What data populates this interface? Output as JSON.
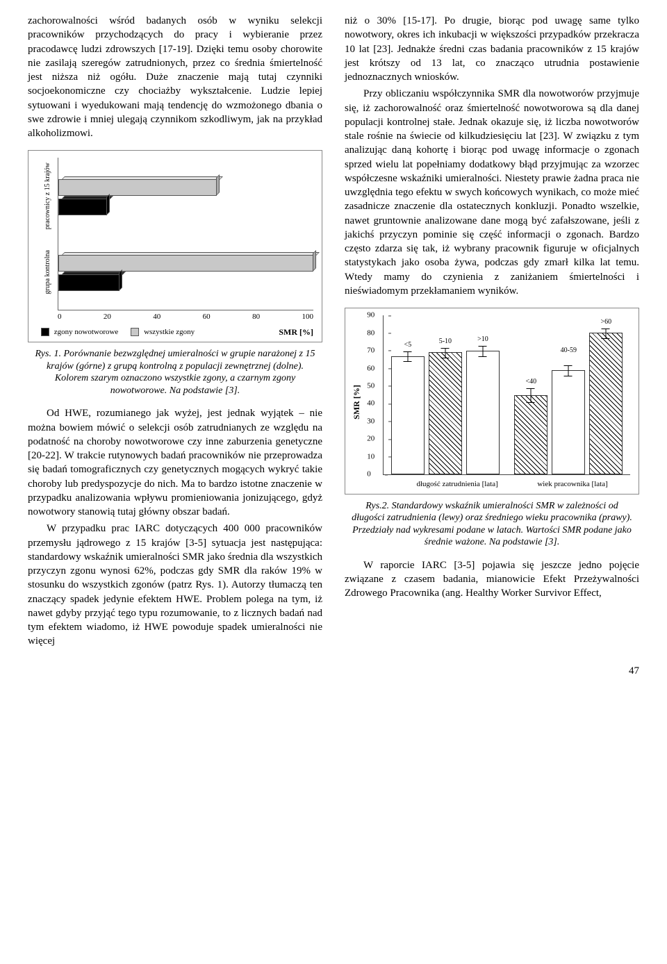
{
  "left": {
    "p1": "zachorowalności wśród badanych osób w wyniku selekcji pracowników przychodzących do pracy i wybieranie przez pracodawcę ludzi zdrowszych [17-19]. Dzięki temu osoby chorowite nie zasilają szeregów zatrudnionych, przez co średnia śmiertelność jest niższa niż ogółu. Duże znaczenie mają tutaj czynniki socjoekonomiczne czy chociażby wykształcenie. Ludzie lepiej sytuowani i wyedukowani mają tendencję do wzmożonego dbania o swe zdrowie i mniej ulegają czynnikom szkodliwym, jak na przykład alkoholizmowi.",
    "fig1_caption": "Rys. 1. Porównanie bezwzględnej umieralności w grupie narażonej z 15 krajów (górne) z grupą kontrolną z populacji zewnętrznej (dolne). Kolorem szarym oznaczono wszystkie zgony, a czarnym zgony nowotworowe. Na podstawie [3].",
    "p2": "Od HWE, rozumianego jak wyżej, jest jednak wyjątek – nie można bowiem mówić o selekcji osób zatrudnianych ze względu na podatność na choroby nowotworowe czy inne zaburzenia genetyczne [20-22]. W trakcie rutynowych badań pracowników nie przeprowadza się badań tomograficznych czy genetycznych mogących wykryć takie choroby lub predyspozycje do nich. Ma to bardzo istotne znaczenie w przypadku analizowania wpływu promieniowania jonizującego, gdyż nowotwory stanowią tutaj główny obszar badań.",
    "p3": "W przypadku prac IARC dotyczących 400 000 pracowników przemysłu jądrowego z 15 krajów [3-5] sytuacja jest następująca: standardowy wskaźnik umieralności SMR jako średnia dla wszystkich przyczyn zgonu wynosi 62%, podczas gdy SMR dla raków 19% w stosunku do wszystkich zgonów (patrz Rys. 1). Autorzy tłumaczą ten znaczący spadek jedynie efektem HWE. Problem polega na tym, iż nawet gdyby przyjąć tego typu rozumowanie, to z licznych badań nad tym efektem wiadomo, iż HWE powoduje spadek umieralności nie więcej"
  },
  "right": {
    "p1": "niż o 30% [15-17]. Po drugie, biorąc pod uwagę same tylko nowotwory, okres ich inkubacji w większości przypadków przekracza 10 lat [23]. Jednakże średni czas badania pracowników z 15 krajów jest krótszy od 13 lat, co znacząco utrudnia postawienie jednoznacznych wniosków.",
    "p2": "Przy obliczaniu współczynnika SMR dla nowotworów przyjmuje się, iż zachorowalność oraz śmiertelność nowotworowa są dla danej populacji kontrolnej stałe. Jednak okazuje się, iż liczba nowotworów stale rośnie na świecie od kilkudziesięciu lat [23]. W związku z tym analizując daną kohortę i biorąc pod uwagę informacje o zgonach sprzed wielu lat popełniamy dodatkowy błąd przyjmując za wzorzec współczesne wskaźniki umieralności. Niestety prawie żadna praca nie uwzględnia tego efektu w swych końcowych wynikach, co może mieć zasadnicze znaczenie dla ostatecznych konkluzji. Ponadto wszelkie, nawet gruntownie analizowane dane mogą być zafałszowane, jeśli z jakichś przyczyn pominie się część informacji o zgonach. Bardzo często zdarza się tak, iż wybrany pracownik figuruje w oficjalnych statystykach jako osoba żywa, podczas gdy zmarł kilka lat temu. Wtedy mamy do czynienia z zaniżaniem śmiertelności i nieświadomym przekłamaniem wyników.",
    "fig2_caption": "Rys.2. Standardowy wskaźnik umieralności SMR w zależności od długości zatrudnienia (lewy) oraz średniego wieku pracownika (prawy). Przedziały nad wykresami podane w latach. Wartości SMR podane jako średnie ważone. Na podstawie [3].",
    "p3": "W raporcie IARC [3-5] pojawia się jeszcze jedno pojęcie związane z czasem badania, mianowicie Efekt Przeżywalności Zdrowego Pracownika (ang. Healthy Worker Survivor Effect,"
  },
  "fig1": {
    "ylabels": [
      "pracownicy z 15 krajów",
      "grupa kontrolna"
    ],
    "xmax": 100,
    "ticks": [
      0,
      20,
      40,
      60,
      80,
      100
    ],
    "series": [
      {
        "name": "zgony nowotworowe",
        "color": "#000000"
      },
      {
        "name": "wszystkie zgony",
        "color": "#c8c8c8"
      }
    ],
    "rows": [
      {
        "black": 19,
        "gray": 62
      },
      {
        "black": 24,
        "gray": 100
      }
    ],
    "legend_right": "SMR [%]"
  },
  "fig2": {
    "ylabel": "SMR [%]",
    "ymax": 90,
    "ytick_step": 10,
    "bar_face": "#ffffff",
    "groups": [
      {
        "xlabel": "długość zatrudnienia [lata]",
        "bars": [
          {
            "label": "<5",
            "value": 67,
            "err": 3,
            "hatch": false,
            "label_dy": -16
          },
          {
            "label": "5-10",
            "value": 69,
            "err": 3,
            "hatch": true,
            "label_dy": -16
          },
          {
            "label": ">10",
            "value": 70,
            "err": 3,
            "hatch": false,
            "label_dy": -16
          }
        ]
      },
      {
        "xlabel": "wiek pracownika [lata]",
        "bars": [
          {
            "label": "<40",
            "value": 45,
            "err": 4,
            "hatch": true,
            "label_dy": -16
          },
          {
            "label": "40-59",
            "value": 59,
            "err": 3,
            "hatch": false,
            "label_dy": -28
          },
          {
            "label": ">60",
            "value": 80,
            "err": 3,
            "hatch": true,
            "label_dy": -16
          }
        ]
      }
    ]
  },
  "page_number": "47"
}
